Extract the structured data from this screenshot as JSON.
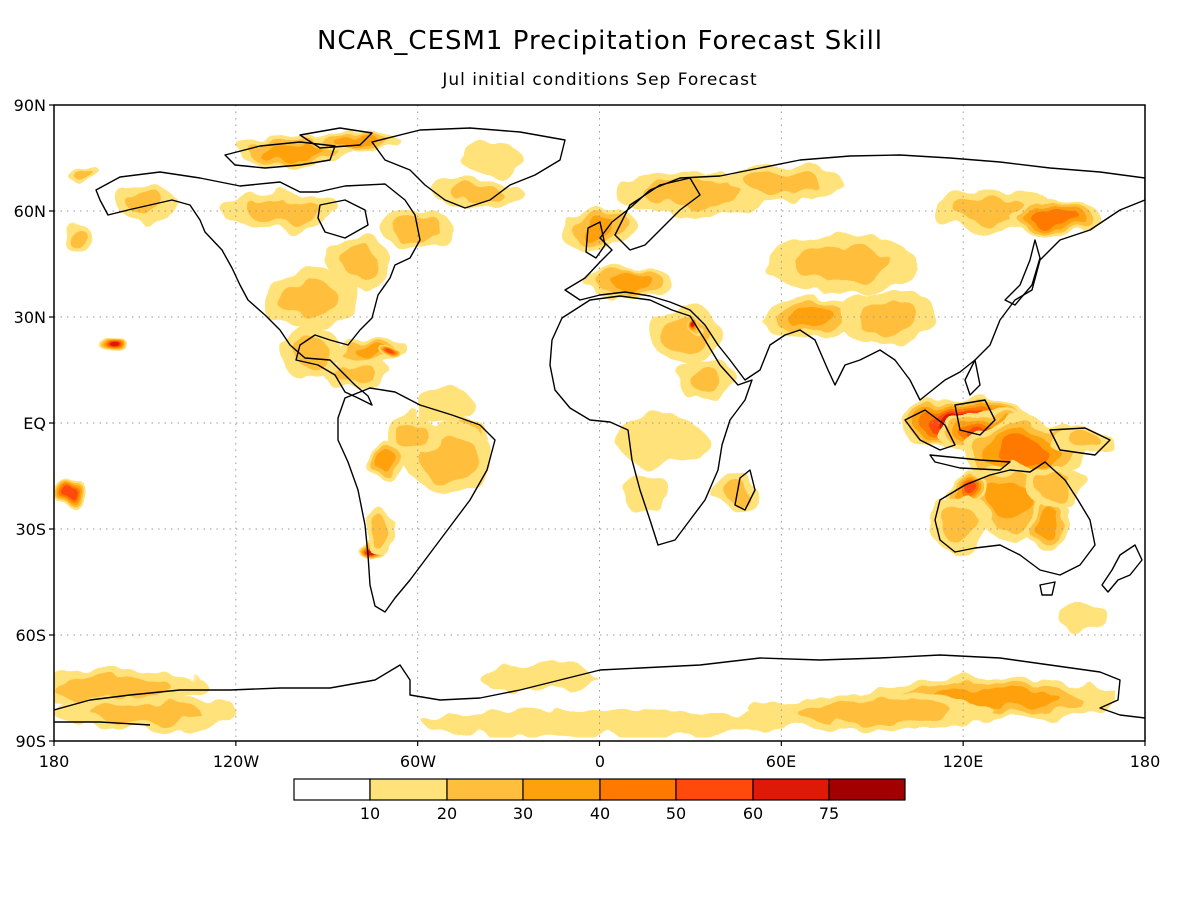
{
  "title": "NCAR_CESM1 Precipitation Forecast Skill",
  "subtitle": "Jul initial conditions   Sep Forecast",
  "lat_labels": [
    "90N",
    "60N",
    "30N",
    "EQ",
    "30S",
    "60S",
    "90S"
  ],
  "lon_labels": [
    "180",
    "120W",
    "60W",
    "0",
    "60E",
    "120E",
    "180"
  ],
  "colorbar": {
    "thresholds": [
      "10",
      "20",
      "30",
      "40",
      "50",
      "60",
      "75"
    ],
    "colors": [
      "#ffffff",
      "#ffe27a",
      "#ffbf3c",
      "#ffa10f",
      "#ff7800",
      "#ff4a0c",
      "#dc1a06",
      "#a20000"
    ]
  },
  "chart_data": {
    "type": "heatmap",
    "title": "NCAR_CESM1 Precipitation Forecast Skill",
    "subtitle": "Jul initial conditions   Sep Forecast",
    "units": "",
    "xlim": [
      -180,
      180
    ],
    "ylim": [
      -90,
      90
    ],
    "x_ticks": [
      "180",
      "120W",
      "60W",
      "0",
      "60E",
      "120E",
      "180"
    ],
    "y_ticks": [
      "90N",
      "60N",
      "30N",
      "EQ",
      "30S",
      "60S",
      "90S"
    ],
    "grid": true,
    "levels": [
      10,
      20,
      30,
      40,
      50,
      60,
      75
    ],
    "skill_regions": [
      {
        "lon": 120,
        "lat": 0,
        "rlon": 22,
        "rlat": 7,
        "value": 65
      },
      {
        "lon": 128,
        "lat": -3,
        "rlon": 16,
        "rlat": 6,
        "value": 55
      },
      {
        "lon": 140,
        "lat": -8,
        "rlon": 20,
        "rlat": 9,
        "value": 45
      },
      {
        "lon": 135,
        "lat": -22,
        "rlon": 15,
        "rlat": 11,
        "value": 30
      },
      {
        "lon": 122,
        "lat": -18,
        "rlon": 7,
        "rlat": 5,
        "value": 50
      },
      {
        "lon": 118,
        "lat": -28,
        "rlon": 10,
        "rlat": 8,
        "value": 22
      },
      {
        "lon": 148,
        "lat": -28,
        "rlon": 6,
        "rlat": 10,
        "value": 30
      },
      {
        "lon": 150,
        "lat": -18,
        "rlon": 10,
        "rlat": 5,
        "value": 25
      },
      {
        "lon": 160,
        "lat": -5,
        "rlon": 10,
        "rlat": 4,
        "value": 25
      },
      {
        "lon": -160,
        "lat": 22,
        "rlon": 4,
        "rlat": 3,
        "value": 60
      },
      {
        "lon": -175,
        "lat": -20,
        "rlon": 6,
        "rlat": 4,
        "value": 50
      },
      {
        "lon": -75,
        "lat": -36,
        "rlon": 5,
        "rlat": 2.5,
        "value": 70
      },
      {
        "lon": -72,
        "lat": -30,
        "rlon": 5,
        "rlat": 7,
        "value": 25
      },
      {
        "lon": -45,
        "lat": -5,
        "rlon": 9,
        "rlat": 6,
        "value": 40
      },
      {
        "lon": -50,
        "lat": -10,
        "rlon": 15,
        "rlat": 10,
        "value": 25
      },
      {
        "lon": -62,
        "lat": -3,
        "rlon": 8,
        "rlat": 6,
        "value": 25
      },
      {
        "lon": -70,
        "lat": -10,
        "rlon": 6,
        "rlat": 5,
        "value": 30
      },
      {
        "lon": -75,
        "lat": 20,
        "rlon": 12,
        "rlat": 4,
        "value": 30
      },
      {
        "lon": -68,
        "lat": 19,
        "rlon": 4,
        "rlat": 2,
        "value": 50
      },
      {
        "lon": -80,
        "lat": 14,
        "rlon": 10,
        "rlat": 4,
        "value": 20
      },
      {
        "lon": -95,
        "lat": 20,
        "rlon": 10,
        "rlat": 8,
        "value": 20
      },
      {
        "lon": -95,
        "lat": 35,
        "rlon": 15,
        "rlat": 8,
        "value": 20
      },
      {
        "lon": -80,
        "lat": 45,
        "rlon": 10,
        "rlat": 8,
        "value": 20
      },
      {
        "lon": -60,
        "lat": 55,
        "rlon": 12,
        "rlat": 5,
        "value": 25
      },
      {
        "lon": -105,
        "lat": 60,
        "rlon": 20,
        "rlat": 5,
        "value": 20
      },
      {
        "lon": -100,
        "lat": 77,
        "rlon": 20,
        "rlat": 4,
        "value": 30
      },
      {
        "lon": -80,
        "lat": 80,
        "rlon": 15,
        "rlat": 3,
        "value": 35
      },
      {
        "lon": -40,
        "lat": 65,
        "rlon": 15,
        "rlat": 4,
        "value": 25
      },
      {
        "lon": -35,
        "lat": 75,
        "rlon": 10,
        "rlat": 5,
        "value": 15
      },
      {
        "lon": -150,
        "lat": 62,
        "rlon": 10,
        "rlat": 6,
        "value": 22
      },
      {
        "lon": -172,
        "lat": 52,
        "rlon": 5,
        "rlat": 4,
        "value": 20
      },
      {
        "lon": -170,
        "lat": 70,
        "rlon": 5,
        "rlat": 2,
        "value": 20
      },
      {
        "lon": 0,
        "lat": 55,
        "rlon": 12,
        "rlat": 6,
        "value": 30
      },
      {
        "lon": 10,
        "lat": 40,
        "rlon": 15,
        "rlat": 4,
        "value": 35
      },
      {
        "lon": 30,
        "lat": 65,
        "rlon": 25,
        "rlat": 6,
        "value": 22
      },
      {
        "lon": 60,
        "lat": 68,
        "rlon": 20,
        "rlat": 5,
        "value": 25
      },
      {
        "lon": 80,
        "lat": 45,
        "rlon": 25,
        "rlat": 8,
        "value": 25
      },
      {
        "lon": 70,
        "lat": 30,
        "rlon": 15,
        "rlat": 6,
        "value": 30
      },
      {
        "lon": 95,
        "lat": 30,
        "rlon": 15,
        "rlat": 8,
        "value": 20
      },
      {
        "lon": 130,
        "lat": 60,
        "rlon": 20,
        "rlat": 6,
        "value": 25
      },
      {
        "lon": 150,
        "lat": 58,
        "rlon": 15,
        "rlat": 5,
        "value": 45
      },
      {
        "lon": 28,
        "lat": 25,
        "rlon": 12,
        "rlat": 8,
        "value": 22
      },
      {
        "lon": 32,
        "lat": 27,
        "rlon": 2,
        "rlat": 2,
        "value": 60
      },
      {
        "lon": 35,
        "lat": 12,
        "rlon": 10,
        "rlat": 6,
        "value": 22
      },
      {
        "lon": 20,
        "lat": -5,
        "rlon": 15,
        "rlat": 7,
        "value": 15
      },
      {
        "lon": 45,
        "lat": -20,
        "rlon": 8,
        "rlat": 5,
        "value": 22
      },
      {
        "lon": 15,
        "lat": -20,
        "rlon": 8,
        "rlat": 6,
        "value": 15
      },
      {
        "lon": -50,
        "lat": 5,
        "rlon": 10,
        "rlat": 5,
        "value": 15
      },
      {
        "lon": -160,
        "lat": -75,
        "rlon": 30,
        "rlat": 5,
        "value": 25
      },
      {
        "lon": -150,
        "lat": -82,
        "rlon": 30,
        "rlat": 5,
        "value": 20
      },
      {
        "lon": 130,
        "lat": -78,
        "rlon": 40,
        "rlat": 6,
        "value": 35
      },
      {
        "lon": 90,
        "lat": -82,
        "rlon": 40,
        "rlat": 5,
        "value": 25
      },
      {
        "lon": 0,
        "lat": -85,
        "rlon": 60,
        "rlat": 4,
        "value": 15
      },
      {
        "lon": -20,
        "lat": -72,
        "rlon": 20,
        "rlat": 4,
        "value": 15
      },
      {
        "lon": 160,
        "lat": -55,
        "rlon": 8,
        "rlat": 3,
        "value": 15
      }
    ]
  }
}
